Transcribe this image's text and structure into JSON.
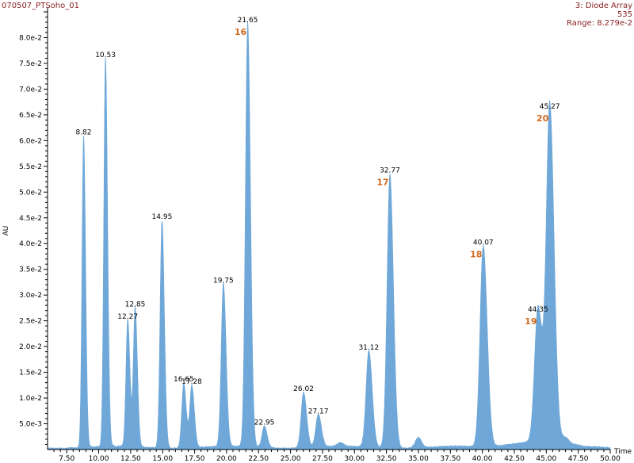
{
  "header": {
    "sample": "070507_PTSoho_01",
    "detector": "3: Diode Array",
    "wavelength": "535",
    "range": "Range: 8.279e-2"
  },
  "colors": {
    "trace": "#6fa8d8",
    "header_text": "#8b2020",
    "marker": "#d2691e"
  },
  "chart_data": {
    "type": "area",
    "xlabel": "Time",
    "ylabel": "AU",
    "xlim": [
      6.0,
      50.0
    ],
    "ylim": [
      0.0,
      0.085
    ],
    "x_ticks": [
      "7.50",
      "10.00",
      "12.50",
      "15.00",
      "17.50",
      "20.00",
      "22.50",
      "25.00",
      "27.50",
      "30.00",
      "32.50",
      "35.00",
      "37.50",
      "40.00",
      "42.50",
      "45.00",
      "47.50",
      "50.00"
    ],
    "y_ticks": [
      "5.0e-3",
      "1.0e-2",
      "1.5e-2",
      "2.0e-2",
      "2.5e-2",
      "3.0e-2",
      "3.5e-2",
      "4.0e-2",
      "4.5e-2",
      "5.0e-2",
      "5.5e-2",
      "6.0e-2",
      "6.5e-2",
      "7.0e-2",
      "7.5e-2",
      "8.0e-2"
    ],
    "peaks": [
      {
        "label": "8.82",
        "rt": 8.82,
        "height": 0.0606
      },
      {
        "label": "10.53",
        "rt": 10.53,
        "height": 0.0756
      },
      {
        "label": "12.27",
        "rt": 12.27,
        "height": 0.0248
      },
      {
        "label": "12.85",
        "rt": 12.85,
        "height": 0.0272
      },
      {
        "label": "14.95",
        "rt": 14.95,
        "height": 0.0442
      },
      {
        "label": "16.65",
        "rt": 16.65,
        "height": 0.0126
      },
      {
        "label": "17.28",
        "rt": 17.28,
        "height": 0.0122
      },
      {
        "label": "19.75",
        "rt": 19.75,
        "height": 0.0318
      },
      {
        "label": "21.65",
        "rt": 21.65,
        "height": 0.0824,
        "marker": "16"
      },
      {
        "label": "22.95",
        "rt": 22.95,
        "height": 0.0042
      },
      {
        "label": "26.02",
        "rt": 26.02,
        "height": 0.0108
      },
      {
        "label": "27.17",
        "rt": 27.17,
        "height": 0.0064
      },
      {
        "label": "31.12",
        "rt": 31.12,
        "height": 0.0188
      },
      {
        "label": "32.77",
        "rt": 32.77,
        "height": 0.0532,
        "marker": "17"
      },
      {
        "label": "40.07",
        "rt": 40.07,
        "height": 0.0392,
        "marker": "18"
      },
      {
        "label": "44.35",
        "rt": 44.35,
        "height": 0.0262,
        "marker": "19"
      },
      {
        "label": "45.27",
        "rt": 45.27,
        "height": 0.0656,
        "marker": "20"
      }
    ],
    "minor_bumps": [
      {
        "rt": 35.0,
        "height": 0.002
      },
      {
        "rt": 28.9,
        "height": 0.0007
      },
      {
        "rt": 46.5,
        "height": 0.001
      }
    ]
  }
}
